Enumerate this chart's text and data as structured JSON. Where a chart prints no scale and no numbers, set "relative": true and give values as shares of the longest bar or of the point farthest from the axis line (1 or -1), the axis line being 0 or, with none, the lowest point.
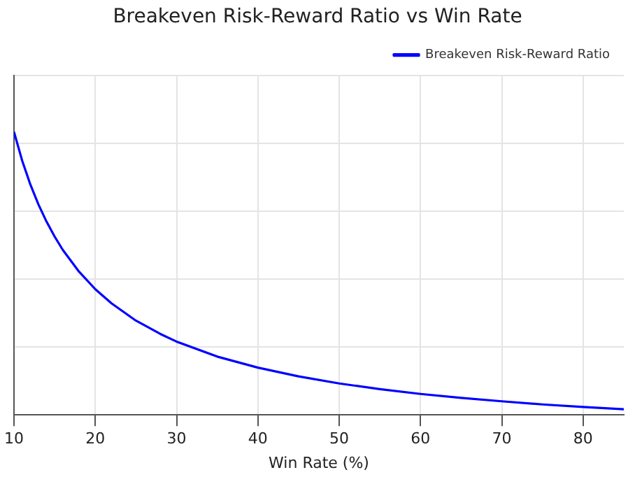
{
  "chart_data": {
    "type": "line",
    "title": "Breakeven Risk-Reward Ratio vs Win Rate",
    "xlabel": "Win Rate (%)",
    "relative": true,
    "grid": true,
    "legend": "top right",
    "marker": "none",
    "line_style": "solid",
    "xlim": [
      10,
      85
    ],
    "xticks": [
      10,
      20,
      30,
      40,
      50,
      60,
      70,
      80
    ],
    "series": [
      {
        "name": "Breakeven Risk-Reward Ratio",
        "color": "#0000ff",
        "x": [
          10,
          11,
          12,
          13,
          14,
          15,
          16,
          18,
          20,
          22,
          25,
          28,
          30,
          35,
          40,
          45,
          50,
          55,
          60,
          65,
          70,
          75,
          80,
          85
        ],
        "values": [
          1,
          0.899,
          0.815,
          0.744,
          0.683,
          0.63,
          0.583,
          0.506,
          0.444,
          0.394,
          0.333,
          0.286,
          0.259,
          0.206,
          0.167,
          0.136,
          0.111,
          0.091,
          0.074,
          0.06,
          0.048,
          0.037,
          0.028,
          0.02
        ]
      }
    ]
  }
}
